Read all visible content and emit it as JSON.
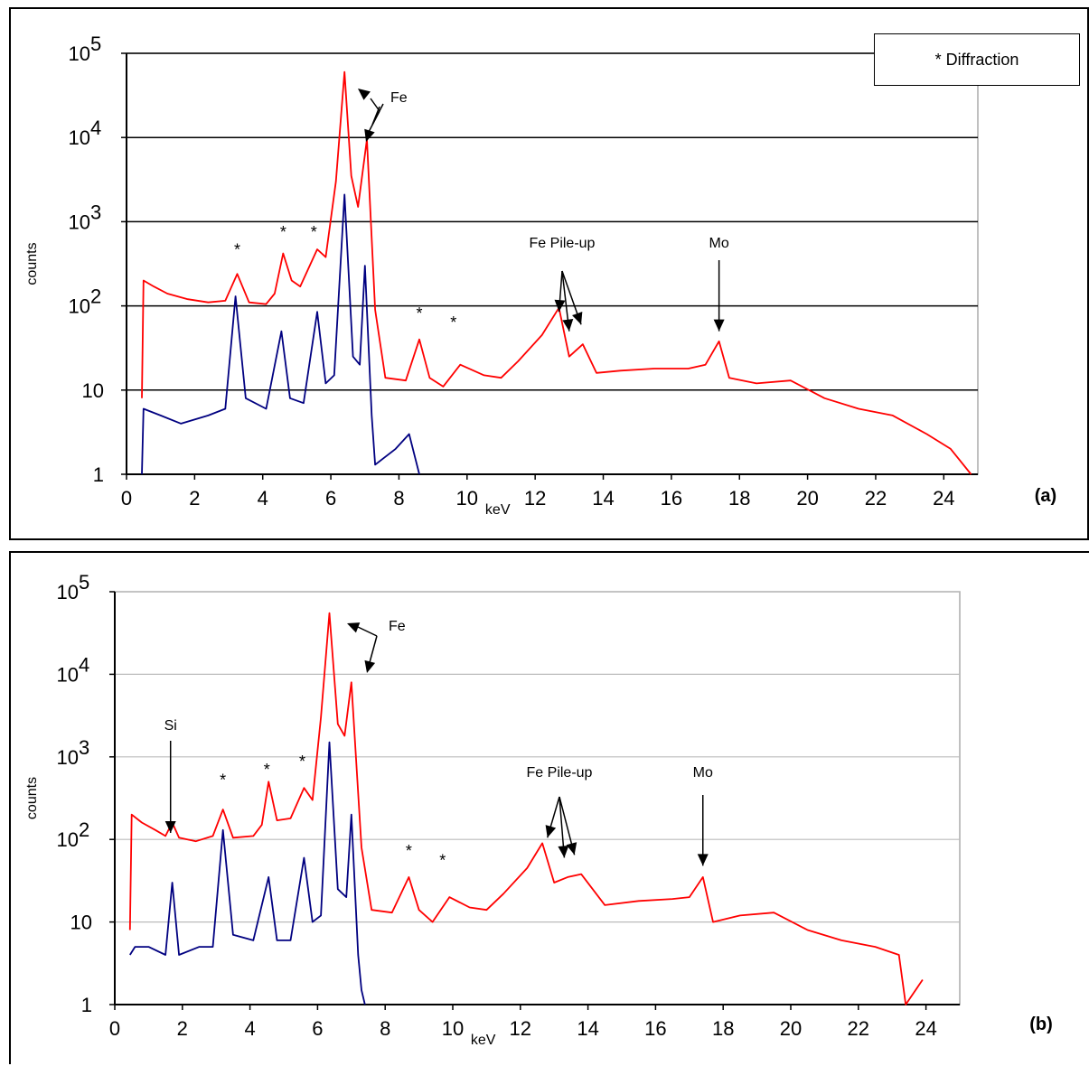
{
  "chart_data": [
    {
      "panel_label": "(a)",
      "type": "line",
      "xlabel": "keV",
      "ylabel": "counts",
      "xlim": [
        0,
        25
      ],
      "ylim": [
        1,
        100000
      ],
      "yscale": "log",
      "grid": "major horizontal",
      "x_ticks": [
        "0",
        "2",
        "4",
        "6",
        "8",
        "10",
        "12",
        "14",
        "16",
        "18",
        "20",
        "22",
        "24"
      ],
      "y_ticks": [
        "1",
        "10",
        "10^2",
        "10^3",
        "10^4",
        "10^5"
      ],
      "legend": "* Diffraction",
      "colors": {
        "upper": "#ff0000",
        "lower": "#000080"
      },
      "series": [
        {
          "points": [
            [
              0.45,
              8
            ],
            [
              0.5,
              200
            ],
            [
              0.8,
              170
            ],
            [
              1.2,
              140
            ],
            [
              1.8,
              120
            ],
            [
              2.4,
              110
            ],
            [
              2.9,
              115
            ],
            [
              3.25,
              240
            ],
            [
              3.6,
              110
            ],
            [
              4.1,
              105
            ],
            [
              4.35,
              140
            ],
            [
              4.6,
              420
            ],
            [
              4.85,
              200
            ],
            [
              5.1,
              170
            ],
            [
              5.6,
              470
            ],
            [
              5.85,
              380
            ],
            [
              6.15,
              3000
            ],
            [
              6.4,
              60000
            ],
            [
              6.6,
              3500
            ],
            [
              6.8,
              1500
            ],
            [
              7.06,
              9500
            ],
            [
              7.3,
              90
            ],
            [
              7.6,
              14
            ],
            [
              8.2,
              13
            ],
            [
              8.6,
              40
            ],
            [
              8.9,
              14
            ],
            [
              9.3,
              11
            ],
            [
              9.8,
              20
            ],
            [
              10.5,
              15
            ],
            [
              11.0,
              14
            ],
            [
              11.5,
              22
            ],
            [
              12.2,
              45
            ],
            [
              12.7,
              95
            ],
            [
              13.0,
              25
            ],
            [
              13.4,
              35
            ],
            [
              13.8,
              16
            ],
            [
              14.5,
              17
            ],
            [
              15.5,
              18
            ],
            [
              16.5,
              18
            ],
            [
              17.0,
              20
            ],
            [
              17.4,
              38
            ],
            [
              17.7,
              14
            ],
            [
              18.5,
              12
            ],
            [
              19.5,
              13
            ],
            [
              20.5,
              8
            ],
            [
              21.5,
              6
            ],
            [
              22.5,
              5
            ],
            [
              23.5,
              3
            ],
            [
              24.2,
              2
            ],
            [
              24.8,
              1
            ]
          ]
        },
        {
          "points": [
            [
              0.45,
              1
            ],
            [
              0.5,
              6
            ],
            [
              1.0,
              5
            ],
            [
              1.6,
              4
            ],
            [
              2.4,
              5
            ],
            [
              2.9,
              6
            ],
            [
              3.2,
              130
            ],
            [
              3.5,
              8
            ],
            [
              4.1,
              6
            ],
            [
              4.55,
              50
            ],
            [
              4.8,
              8
            ],
            [
              5.2,
              7
            ],
            [
              5.6,
              85
            ],
            [
              5.85,
              12
            ],
            [
              6.1,
              15
            ],
            [
              6.4,
              2100
            ],
            [
              6.65,
              25
            ],
            [
              6.85,
              20
            ],
            [
              7.0,
              300
            ],
            [
              7.2,
              5
            ],
            [
              7.3,
              1.3
            ],
            [
              7.9,
              2
            ],
            [
              8.3,
              3
            ],
            [
              8.6,
              1
            ]
          ]
        }
      ],
      "annotations": [
        "Fe",
        "Fe Pile-up",
        "Mo",
        "*",
        "*",
        "*",
        "*",
        "*"
      ]
    },
    {
      "panel_label": "(b)",
      "type": "line",
      "xlabel": "keV",
      "ylabel": "counts",
      "xlim": [
        0,
        25
      ],
      "ylim": [
        1,
        100000
      ],
      "yscale": "log",
      "grid": "major horizontal",
      "x_ticks": [
        "0",
        "2",
        "4",
        "6",
        "8",
        "10",
        "12",
        "14",
        "16",
        "18",
        "20",
        "22",
        "24"
      ],
      "y_ticks": [
        "1",
        "10",
        "10^2",
        "10^3",
        "10^4",
        "10^5"
      ],
      "colors": {
        "upper": "#ff0000",
        "lower": "#000080"
      },
      "series": [
        {
          "points": [
            [
              0.45,
              8
            ],
            [
              0.5,
              200
            ],
            [
              0.8,
              160
            ],
            [
              1.2,
              130
            ],
            [
              1.5,
              110
            ],
            [
              1.7,
              160
            ],
            [
              1.9,
              105
            ],
            [
              2.4,
              95
            ],
            [
              2.9,
              110
            ],
            [
              3.2,
              230
            ],
            [
              3.5,
              105
            ],
            [
              4.1,
              110
            ],
            [
              4.35,
              150
            ],
            [
              4.55,
              500
            ],
            [
              4.8,
              170
            ],
            [
              5.2,
              180
            ],
            [
              5.6,
              420
            ],
            [
              5.85,
              300
            ],
            [
              6.1,
              3000
            ],
            [
              6.35,
              55000
            ],
            [
              6.6,
              2500
            ],
            [
              6.8,
              1800
            ],
            [
              7.0,
              8000
            ],
            [
              7.3,
              80
            ],
            [
              7.6,
              14
            ],
            [
              8.2,
              13
            ],
            [
              8.7,
              35
            ],
            [
              9.0,
              14
            ],
            [
              9.4,
              10
            ],
            [
              9.9,
              20
            ],
            [
              10.5,
              15
            ],
            [
              11.0,
              14
            ],
            [
              11.5,
              22
            ],
            [
              12.2,
              45
            ],
            [
              12.65,
              90
            ],
            [
              13.0,
              30
            ],
            [
              13.4,
              35
            ],
            [
              13.8,
              38
            ],
            [
              14.5,
              16
            ],
            [
              15.5,
              18
            ],
            [
              16.5,
              19
            ],
            [
              17.0,
              20
            ],
            [
              17.4,
              35
            ],
            [
              17.7,
              10
            ],
            [
              18.5,
              12
            ],
            [
              19.5,
              13
            ],
            [
              20.5,
              8
            ],
            [
              21.5,
              6
            ],
            [
              22.5,
              5
            ],
            [
              23.2,
              4
            ],
            [
              23.4,
              1
            ],
            [
              23.9,
              2
            ]
          ]
        },
        {
          "points": [
            [
              0.45,
              4
            ],
            [
              0.6,
              5
            ],
            [
              1.0,
              5
            ],
            [
              1.5,
              4
            ],
            [
              1.7,
              30
            ],
            [
              1.9,
              4
            ],
            [
              2.5,
              5
            ],
            [
              2.9,
              5
            ],
            [
              3.2,
              130
            ],
            [
              3.5,
              7
            ],
            [
              4.1,
              6
            ],
            [
              4.55,
              35
            ],
            [
              4.8,
              6
            ],
            [
              5.2,
              6
            ],
            [
              5.6,
              60
            ],
            [
              5.85,
              10
            ],
            [
              6.1,
              12
            ],
            [
              6.35,
              1500
            ],
            [
              6.6,
              25
            ],
            [
              6.85,
              20
            ],
            [
              7.0,
              200
            ],
            [
              7.2,
              4
            ],
            [
              7.3,
              1.5
            ],
            [
              7.4,
              1
            ]
          ]
        }
      ],
      "annotations": [
        "Fe",
        "Fe Pile-up",
        "Mo",
        "Si",
        "*",
        "*",
        "*",
        "*",
        "*"
      ]
    }
  ]
}
